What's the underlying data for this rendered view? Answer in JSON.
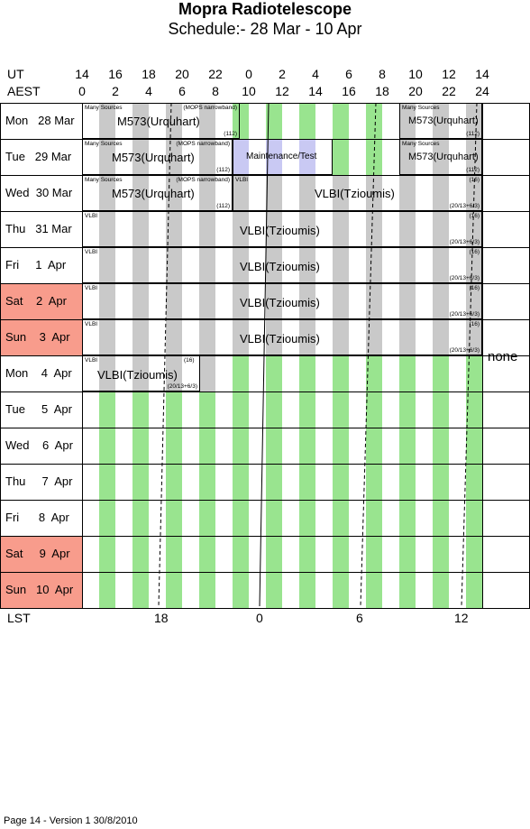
{
  "title": "Mopra Radiotelescope",
  "subtitle": "Schedule:- 28 Mar - 10 Apr",
  "ut_label": "UT",
  "aest_label": "AEST",
  "ut_ticks": [
    "14",
    "16",
    "18",
    "20",
    "22",
    "0",
    "2",
    "4",
    "6",
    "8",
    "10",
    "12",
    "14"
  ],
  "aest_ticks": [
    "0",
    "2",
    "4",
    "6",
    "8",
    "10",
    "12",
    "14",
    "16",
    "18",
    "20",
    "22",
    "24"
  ],
  "days": [
    {
      "label": "Mon   28 Mar",
      "weekend": false
    },
    {
      "label": "Tue   29 Mar",
      "weekend": false
    },
    {
      "label": "Wed  30 Mar",
      "weekend": false
    },
    {
      "label": "Thu   31 Mar",
      "weekend": false
    },
    {
      "label": "Fri     1  Apr",
      "weekend": false
    },
    {
      "label": "Sat    2  Apr",
      "weekend": true
    },
    {
      "label": "Sun    3  Apr",
      "weekend": true
    },
    {
      "label": "Mon    4  Apr",
      "weekend": false
    },
    {
      "label": "Tue     5  Apr",
      "weekend": false
    },
    {
      "label": "Wed    6  Apr",
      "weekend": false
    },
    {
      "label": "Thu     7  Apr",
      "weekend": false
    },
    {
      "label": "Fri      8  Apr",
      "weekend": false
    },
    {
      "label": "Sat     9  Apr",
      "weekend": true
    },
    {
      "label": "Sun   10  Apr",
      "weekend": true
    }
  ],
  "lst_label": "LST",
  "lst_ticks": [
    "18",
    "0",
    "6",
    "12"
  ],
  "right_note": "none",
  "footer": "Page 14 - Version 1  30/8/2010",
  "blocks": {
    "mon28_a": {
      "big": "M573(Urquhart)",
      "tl": "Many Sources",
      "tr": "(MOPS narrowband)",
      "br": "(112)"
    },
    "mon28_b": {
      "big": "M573(Urquhart)",
      "tl": "Many Sources",
      "br": "(112)"
    },
    "tue29_a": {
      "big": "M573(Urquhart)",
      "tl": "Many Sources",
      "tr": "(MOPS narrowband)",
      "br": "(112)"
    },
    "tue29_m": {
      "big": "Maintenance/Test"
    },
    "tue29_b": {
      "big": "M573(Urquhart)",
      "tl": "Many Sources",
      "br": "(112)"
    },
    "wed30_a": {
      "big": "M573(Urquhart)",
      "tl": "Many Sources",
      "tr": "(MOPS narrowband)",
      "br": "(112)"
    },
    "wed30_v": {
      "big": "VLBI(Tzioumis)",
      "tl": "VLBI",
      "tr": "(16)",
      "br": "(20/13+6/3)"
    },
    "thu31": {
      "big": "VLBI(Tzioumis)",
      "tl": "VLBI",
      "tr": "(16)",
      "br": "(20/13+6/3)"
    },
    "fri1": {
      "big": "VLBI(Tzioumis)",
      "tl": "VLBI",
      "tr": "(16)",
      "br": "(20/13+6/3)"
    },
    "sat2": {
      "big": "VLBI(Tzioumis)",
      "tl": "VLBI",
      "tr": "(16)",
      "br": "(20/13+6/3)"
    },
    "sun3": {
      "big": "VLBI(Tzioumis)",
      "tl": "VLBI",
      "tr": "(16)",
      "br": "(20/13+6/3)"
    },
    "mon4": {
      "big": "VLBI(Tzioumis)",
      "tl": "VLBI",
      "tr": "(16)",
      "br": "(20/13+6/3)"
    }
  },
  "colors": {
    "night": "#99e48f",
    "twilight": "#c9c9c9",
    "maintenance": "#c9c9f3",
    "weekend": "#f89c8c"
  }
}
